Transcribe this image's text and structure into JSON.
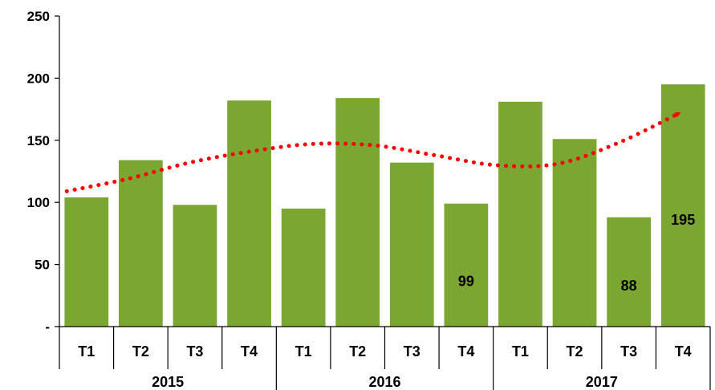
{
  "chart_data": {
    "type": "bar",
    "title": "",
    "xlabel": "",
    "ylabel": "",
    "ylim": [
      0,
      250
    ],
    "yticks": [
      {
        "value": 0,
        "label": "-"
      },
      {
        "value": 50,
        "label": "50"
      },
      {
        "value": 100,
        "label": "100"
      },
      {
        "value": 150,
        "label": "150"
      },
      {
        "value": 200,
        "label": "200"
      },
      {
        "value": 250,
        "label": "250"
      }
    ],
    "grid": false,
    "legend": "none",
    "bar_color": "#7aa631",
    "trend_color": "#ff0000",
    "groups": [
      {
        "label": "2015",
        "categories": [
          "T1",
          "T2",
          "T3",
          "T4"
        ]
      },
      {
        "label": "2016",
        "categories": [
          "T1",
          "T2",
          "T3",
          "T4"
        ]
      },
      {
        "label": "2017",
        "categories": [
          "T1",
          "T2",
          "T3",
          "T4"
        ]
      }
    ],
    "values": [
      104,
      134,
      98,
      182,
      95,
      184,
      132,
      99,
      181,
      151,
      88,
      195
    ],
    "data_labels": [
      {
        "index": 7,
        "text": "99"
      },
      {
        "index": 10,
        "text": "88"
      },
      {
        "index": 11,
        "text": "195"
      }
    ],
    "trendline": {
      "style": "dotted",
      "arrow": true,
      "values": [
        109,
        119,
        132,
        141,
        147,
        146,
        138,
        130,
        131,
        148,
        172
      ]
    }
  }
}
